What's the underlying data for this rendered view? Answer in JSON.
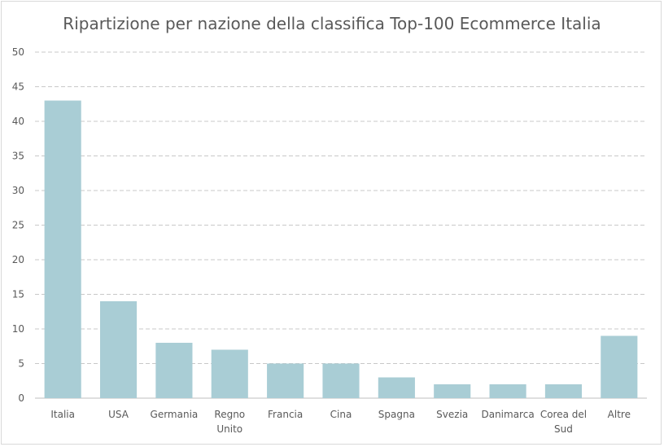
{
  "chart_data": {
    "type": "bar",
    "title": "Ripartizione per nazione della classifica Top-100 Ecommerce Italia",
    "categories": [
      [
        "Italia"
      ],
      [
        "USA"
      ],
      [
        "Germania"
      ],
      [
        "Regno",
        "Unito"
      ],
      [
        "Francia"
      ],
      [
        "Cina"
      ],
      [
        "Spagna"
      ],
      [
        "Svezia"
      ],
      [
        "Danimarca"
      ],
      [
        "Corea del",
        "Sud"
      ],
      [
        "Altre"
      ]
    ],
    "values": [
      43,
      14,
      8,
      7,
      5,
      5,
      3,
      2,
      2,
      2,
      9
    ],
    "ylim": [
      0,
      50
    ],
    "yticks": [
      "0",
      "5",
      "10",
      "15",
      "20",
      "25",
      "30",
      "35",
      "40",
      "45",
      "50"
    ],
    "grid": true,
    "legend": "none",
    "colors": {
      "bar": "#a9cdd5",
      "grid": "#c8c8c8",
      "axis": "#bfbfbf",
      "text": "#595959"
    }
  }
}
